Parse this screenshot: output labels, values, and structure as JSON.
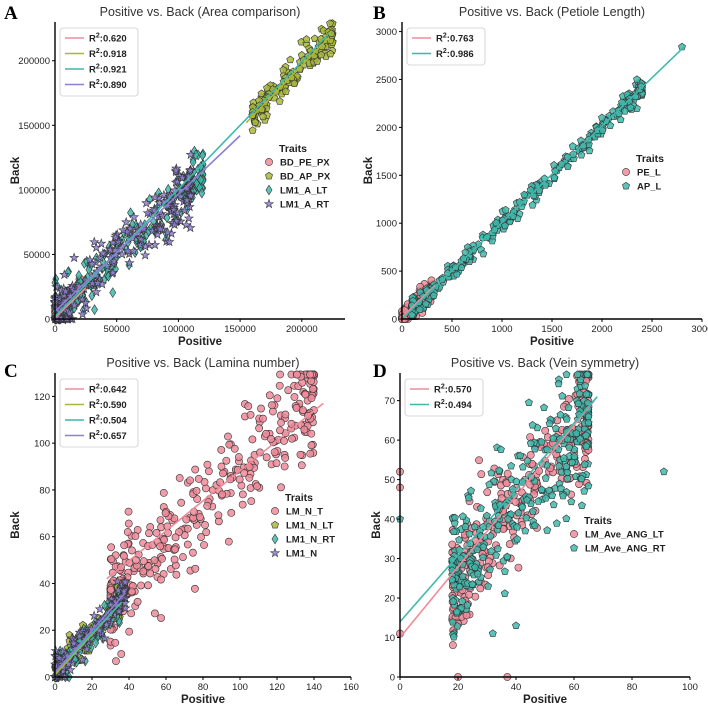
{
  "chart_data": [
    {
      "type": "scatter",
      "panel_label": "A",
      "title": "Positive vs. Back (Area comparison)",
      "xlabel": "Positive",
      "ylabel": "Back",
      "xlim": [
        0,
        235000
      ],
      "ylim": [
        0,
        230000
      ],
      "xticks": [
        0,
        50000,
        100000,
        150000,
        200000
      ],
      "yticks": [
        0,
        50000,
        100000,
        150000,
        200000
      ],
      "xtick_labels": [
        "0",
        "50000",
        "100000",
        "150000",
        "200000"
      ],
      "ytick_labels": [
        "0",
        "50000",
        "100000",
        "150000",
        "200000"
      ],
      "grid": false,
      "legend_title": "Traits",
      "series": [
        {
          "name": "BD_PE_PX",
          "marker": "circle",
          "color": "#f08b9a",
          "r2_label": "0.620",
          "cloud": {
            "x_range": [
              0,
              22000
            ],
            "slope": 1.0,
            "intercept": 2000,
            "spread": 5000,
            "n": 90
          },
          "fit": {
            "x": [
              0,
              25000
            ],
            "y": [
              1000,
              24000
            ]
          }
        },
        {
          "name": "BD_AP_PX",
          "marker": "pentagon",
          "color": "#a9b83a",
          "r2_label": "0.918",
          "cloud": {
            "x_range": [
              160000,
              225000
            ],
            "slope": 0.97,
            "intercept": 3000,
            "spread": 6000,
            "n": 160
          },
          "fit": {
            "x": [
              155000,
              222000
            ],
            "y": [
              152000,
              218000
            ]
          }
        },
        {
          "name": "LM1_A_LT",
          "marker": "diamond",
          "color": "#3fb8ac",
          "r2_label": "0.921",
          "cloud": {
            "x_range": [
              0,
              120000
            ],
            "slope": 0.92,
            "intercept": 3000,
            "spread": 10000,
            "n": 230
          },
          "fit": {
            "x": [
              0,
              222000
            ],
            "y": [
              2000,
              221000
            ]
          }
        },
        {
          "name": "LM1_A_RT",
          "marker": "star",
          "color": "#8e7fd4",
          "r2_label": "0.890",
          "cloud": {
            "x_range": [
              0,
              110000
            ],
            "slope": 0.9,
            "intercept": 4000,
            "spread": 11000,
            "n": 230
          },
          "fit": {
            "x": [
              0,
              150000
            ],
            "y": [
              6000,
              142000
            ]
          }
        }
      ]
    },
    {
      "type": "scatter",
      "panel_label": "B",
      "title": "Positive vs. Back (Petiole Length)",
      "xlabel": "Positive",
      "ylabel": "Back",
      "xlim": [
        0,
        3000
      ],
      "ylim": [
        0,
        3100
      ],
      "xticks": [
        0,
        500,
        1000,
        1500,
        2000,
        2500,
        3000
      ],
      "yticks": [
        0,
        500,
        1000,
        1500,
        2000,
        2500,
        3000
      ],
      "xtick_labels": [
        "0",
        "500",
        "1000",
        "1500",
        "2000",
        "2500",
        "3000"
      ],
      "ytick_labels": [
        "0",
        "500",
        "1000",
        "1500",
        "2000",
        "2500",
        "3000"
      ],
      "grid": false,
      "legend_title": "Traits",
      "series": [
        {
          "name": "PE_L",
          "marker": "circle",
          "color": "#f08b9a",
          "r2_label": "0.763",
          "cloud": {
            "x_range": [
              0,
              300
            ],
            "slope": 1.0,
            "intercept": 20,
            "spread": 60,
            "n": 120
          },
          "fit": {
            "x": [
              0,
              330
            ],
            "y": [
              20,
              350
            ]
          }
        },
        {
          "name": "AP_L",
          "marker": "pentagon",
          "color": "#3fb8ac",
          "r2_label": "0.986",
          "cloud": {
            "x_range": [
              100,
              2400
            ],
            "slope": 1.0,
            "intercept": 0,
            "spread": 50,
            "n": 300
          },
          "extra_points": [
            [
              2800,
              2840
            ],
            [
              2350,
              2500
            ],
            [
              2200,
              2260
            ],
            [
              2000,
              2100
            ]
          ],
          "fit": {
            "x": [
              0,
              2820
            ],
            "y": [
              0,
              2840
            ]
          }
        }
      ]
    },
    {
      "type": "scatter",
      "panel_label": "C",
      "title": "Positive vs. Back (Lamina number)",
      "xlabel": "Positive",
      "ylabel": "Back",
      "xlim": [
        0,
        160
      ],
      "ylim": [
        0,
        130
      ],
      "xticks": [
        0,
        20,
        40,
        60,
        80,
        100,
        120,
        140,
        160
      ],
      "yticks": [
        0,
        20,
        40,
        60,
        80,
        100,
        120
      ],
      "xtick_labels": [
        "0",
        "20",
        "40",
        "60",
        "80",
        "100",
        "120",
        "140",
        "160"
      ],
      "ytick_labels": [
        "0",
        "20",
        "40",
        "60",
        "80",
        "100",
        "120"
      ],
      "grid": false,
      "legend_title": "Traits",
      "series": [
        {
          "name": "LM_N_T",
          "marker": "circle",
          "color": "#f08b9a",
          "r2_label": "0.642",
          "cloud": {
            "x_range": [
              30,
              140
            ],
            "slope": 0.8,
            "intercept": 9,
            "spread": 12,
            "n": 360
          },
          "fit": {
            "x": [
              28,
              145
            ],
            "y": [
              42,
              117
            ]
          }
        },
        {
          "name": "LM1_N_LT",
          "marker": "pentagon",
          "color": "#a9b83a",
          "r2_label": "0.590",
          "cloud": {
            "x_range": [
              0,
              35
            ],
            "slope": 0.85,
            "intercept": 2,
            "spread": 4,
            "n": 100
          },
          "fit": {
            "x": [
              0,
              36
            ],
            "y": [
              1,
              32
            ]
          }
        },
        {
          "name": "LM1_N_RT",
          "marker": "diamond",
          "color": "#3fb8ac",
          "r2_label": "0.504",
          "cloud": {
            "x_range": [
              0,
              35
            ],
            "slope": 0.85,
            "intercept": 2,
            "spread": 4,
            "n": 100
          },
          "fit": {
            "x": [
              0,
              36
            ],
            "y": [
              2,
              32
            ]
          }
        },
        {
          "name": "LM1_N",
          "marker": "star",
          "color": "#8e7fd4",
          "r2_label": "0.657",
          "cloud": {
            "x_range": [
              0,
              38
            ],
            "slope": 0.9,
            "intercept": 2,
            "spread": 4,
            "n": 120
          },
          "fit": {
            "x": [
              0,
              38
            ],
            "y": [
              2,
              36
            ]
          }
        }
      ]
    },
    {
      "type": "scatter",
      "panel_label": "D",
      "title": "Positive vs. Back (Vein symmetry)",
      "xlabel": "Positive",
      "ylabel": "Back",
      "xlim": [
        0,
        100
      ],
      "ylim": [
        0,
        77
      ],
      "xticks": [
        0,
        20,
        40,
        60,
        80,
        100
      ],
      "yticks": [
        0,
        10,
        20,
        30,
        40,
        50,
        60,
        70
      ],
      "xtick_labels": [
        "0",
        "20",
        "40",
        "60",
        "80",
        "100"
      ],
      "ytick_labels": [
        "0",
        "10",
        "20",
        "30",
        "40",
        "50",
        "60",
        "70"
      ],
      "grid": false,
      "legend_title": "Traits",
      "series": [
        {
          "name": "LM_Ave_ANG_LT",
          "marker": "circle",
          "color": "#f08b9a",
          "r2_label": "0.570",
          "cloud": {
            "x_range": [
              18,
              65
            ],
            "slope": 0.9,
            "intercept": 8,
            "spread": 7,
            "n": 300
          },
          "extra_points": [
            [
              0,
              48
            ],
            [
              0,
              52
            ],
            [
              0,
              11
            ],
            [
              20,
              0
            ],
            [
              37,
              0
            ]
          ],
          "fit": {
            "x": [
              0,
              67
            ],
            "y": [
              10,
              70
            ]
          }
        },
        {
          "name": "LM_Ave_ANG_RT",
          "marker": "pentagon",
          "color": "#3fb8ac",
          "r2_label": "0.494",
          "cloud": {
            "x_range": [
              18,
              65
            ],
            "slope": 0.85,
            "intercept": 10,
            "spread": 8,
            "n": 320
          },
          "extra_points": [
            [
              0,
              40
            ],
            [
              91,
              52
            ],
            [
              32,
              11
            ],
            [
              40,
              13
            ]
          ],
          "fit": {
            "x": [
              0,
              68
            ],
            "y": [
              14,
              71
            ]
          }
        }
      ]
    }
  ]
}
